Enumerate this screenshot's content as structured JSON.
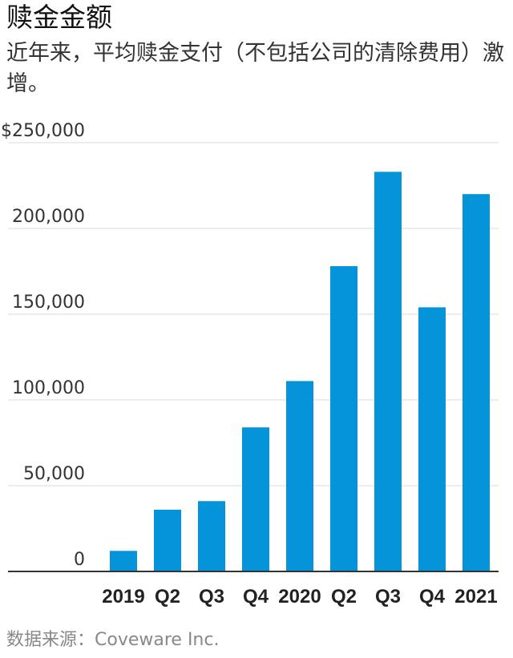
{
  "title": "赎金金额",
  "subtitle": "近年来，平均赎金支付（不包括公司的清除费用）激增。",
  "source": "数据来源：Coveware Inc.",
  "colors": {
    "bar": "#0593d9",
    "grid": "#d8d8d8",
    "axis": "#333333",
    "tick_text": "#333333"
  },
  "chart_data": {
    "type": "bar",
    "title": "赎金金额",
    "subtitle": "近年来，平均赎金支付（不包括公司的清除费用）激增。",
    "xlabel": "",
    "ylabel": "",
    "ylim": [
      0,
      250000
    ],
    "grid": true,
    "y_ticks": [
      0,
      50000,
      100000,
      150000,
      200000,
      250000
    ],
    "y_tick_labels": [
      "0",
      "50,000",
      "100,000",
      "150,000",
      "200,000",
      "$250,000"
    ],
    "categories": [
      "2019",
      "Q2",
      "Q3",
      "Q4",
      "2020",
      "Q2",
      "Q3",
      "Q4",
      "2021"
    ],
    "values": [
      12000,
      36000,
      41000,
      84000,
      111000,
      178000,
      233000,
      154000,
      220000
    ]
  }
}
